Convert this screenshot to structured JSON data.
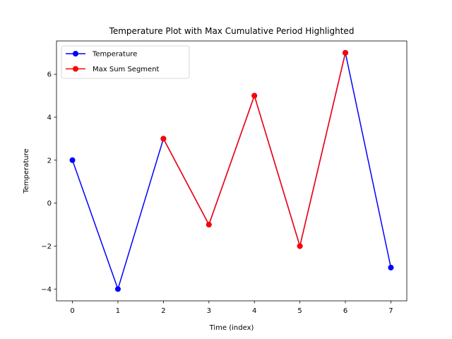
{
  "chart_data": {
    "type": "line",
    "title": "Temperature Plot with Max Cumulative Period Highlighted",
    "xlabel": "Time (index)",
    "ylabel": "Temperature",
    "x": [
      0,
      1,
      2,
      3,
      4,
      5,
      6,
      7
    ],
    "xlim": [
      -0.35,
      7.35
    ],
    "ylim": [
      -4.55,
      7.55
    ],
    "xticks": [
      0,
      1,
      2,
      3,
      4,
      5,
      6,
      7
    ],
    "yticks": [
      -4,
      -2,
      0,
      2,
      4,
      6
    ],
    "ytick_labels": [
      "−4",
      "−2",
      "0",
      "2",
      "4",
      "6"
    ],
    "grid": false,
    "legend_position": "upper-left",
    "series": [
      {
        "name": "Temperature",
        "color": "#0000ff",
        "marker": "circle",
        "x": [
          0,
          1,
          2,
          3,
          4,
          5,
          6,
          7
        ],
        "values": [
          2,
          -4,
          3,
          -1,
          5,
          -2,
          7,
          -3
        ]
      },
      {
        "name": "Max Sum Segment",
        "color": "#ff0000",
        "marker": "circle",
        "x": [
          2,
          3,
          4,
          5,
          6
        ],
        "values": [
          3,
          -1,
          5,
          -2,
          7
        ]
      }
    ]
  }
}
